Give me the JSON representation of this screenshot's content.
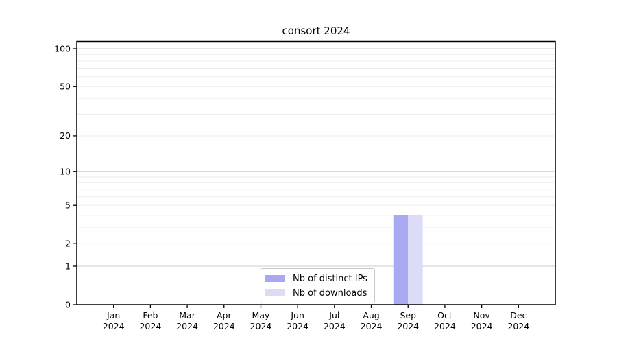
{
  "title": "consort 2024",
  "legend": {
    "items": [
      {
        "label": "Nb of distinct IPs",
        "color": "#a9a9f2"
      },
      {
        "label": "Nb of downloads",
        "color": "#dcdcf8"
      }
    ]
  },
  "chart_data": {
    "type": "bar",
    "title": "consort 2024",
    "categories": [
      {
        "month": "Jan",
        "year": "2024"
      },
      {
        "month": "Feb",
        "year": "2024"
      },
      {
        "month": "Mar",
        "year": "2024"
      },
      {
        "month": "Apr",
        "year": "2024"
      },
      {
        "month": "May",
        "year": "2024"
      },
      {
        "month": "Jun",
        "year": "2024"
      },
      {
        "month": "Jul",
        "year": "2024"
      },
      {
        "month": "Aug",
        "year": "2024"
      },
      {
        "month": "Sep",
        "year": "2024"
      },
      {
        "month": "Oct",
        "year": "2024"
      },
      {
        "month": "Nov",
        "year": "2024"
      },
      {
        "month": "Dec",
        "year": "2024"
      }
    ],
    "series": [
      {
        "name": "Nb of distinct IPs",
        "color": "#a9a9f2",
        "values": [
          0,
          0,
          0,
          0,
          0,
          0,
          0,
          0,
          4,
          0,
          0,
          0
        ]
      },
      {
        "name": "Nb of downloads",
        "color": "#dcdcf8",
        "values": [
          0,
          0,
          0,
          0,
          0,
          0,
          0,
          0,
          4,
          0,
          0,
          0
        ]
      }
    ],
    "y_scale": "log(1+x)",
    "y_tick_values": [
      0,
      1,
      2,
      5,
      10,
      20,
      50,
      100
    ],
    "y_major_gridlines": [
      1,
      10,
      100
    ],
    "y_minor_gridlines": [
      2,
      3,
      4,
      5,
      6,
      7,
      8,
      9,
      20,
      30,
      40,
      50,
      60,
      70,
      80,
      90
    ],
    "ylim": [
      0,
      115
    ],
    "grid": "horizontal",
    "legend_position": "inside-bottom-center",
    "colors": {
      "major_grid": "#cccccc",
      "minor_grid": "#ededed",
      "spine": "#000000"
    }
  }
}
